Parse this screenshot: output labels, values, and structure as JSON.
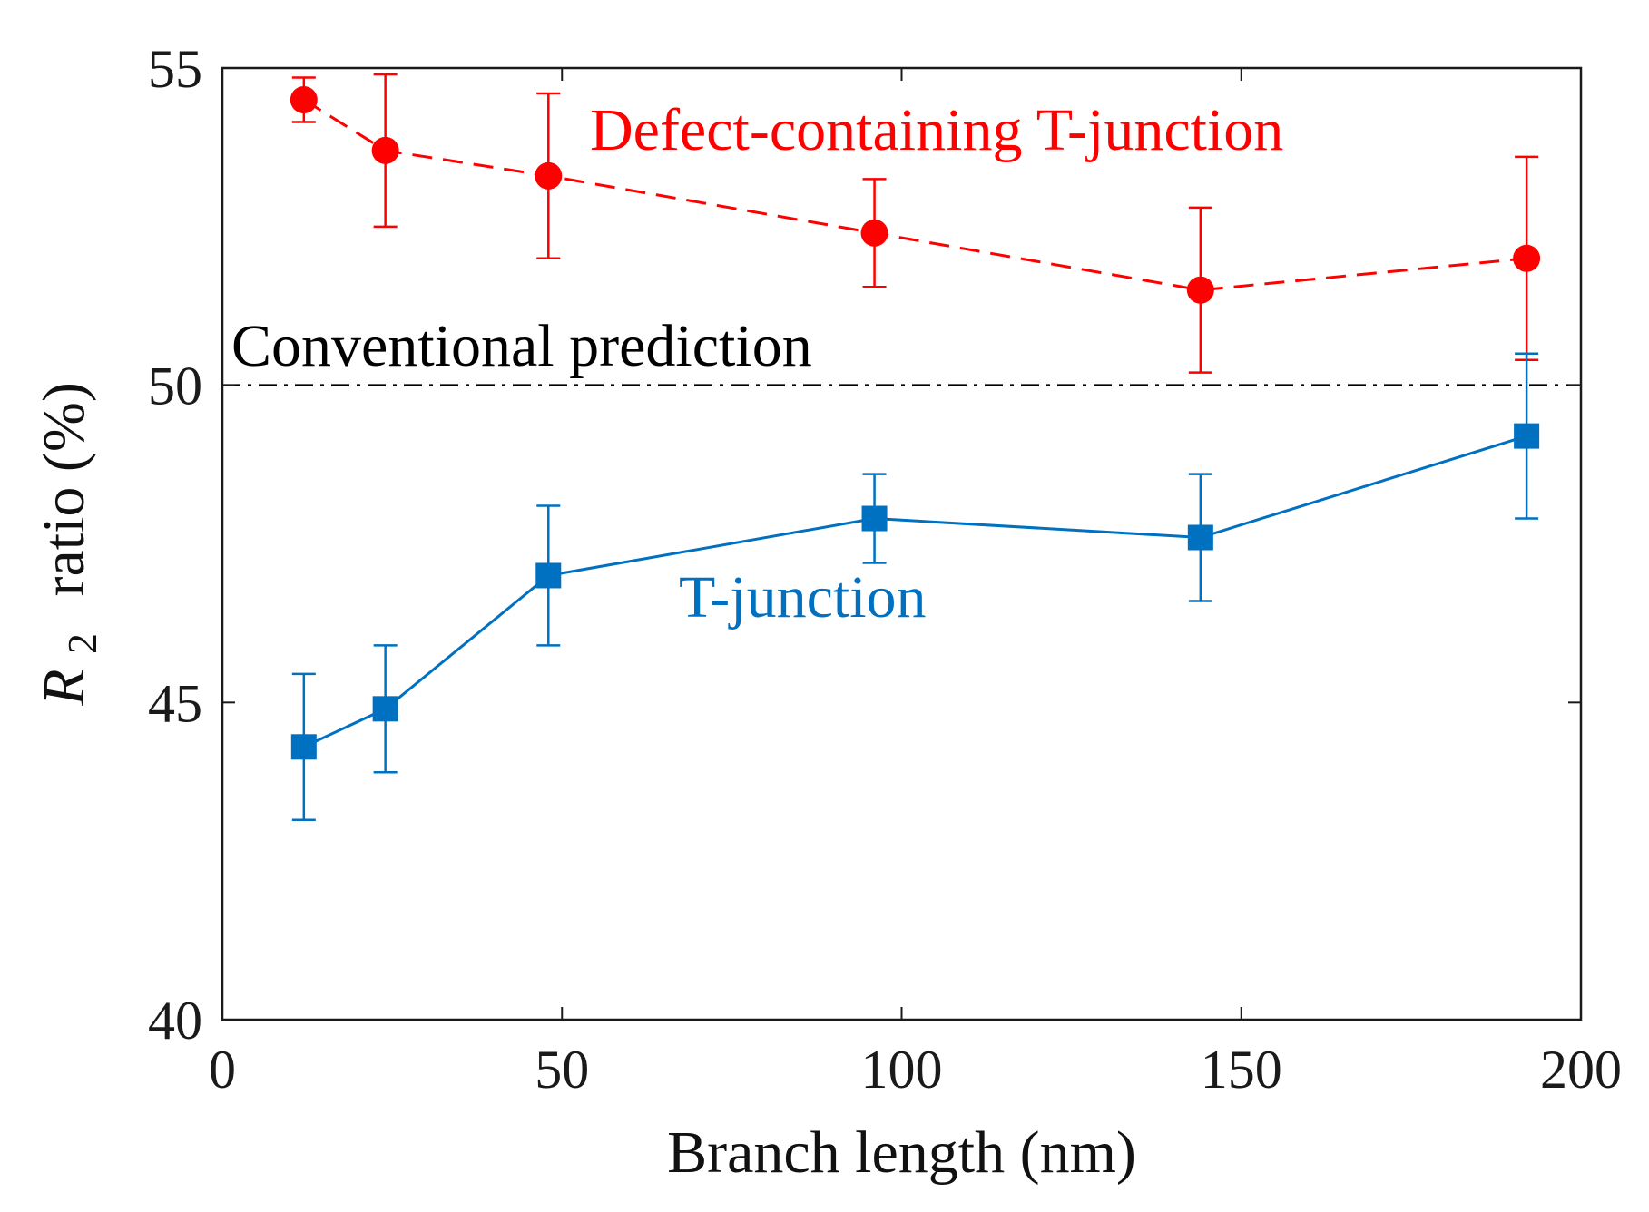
{
  "chart_data": {
    "type": "line",
    "xlabel": "Branch length (nm)",
    "ylabel": {
      "symbol": "R",
      "subscript": "2",
      "rest": "ratio (%)"
    },
    "xlim": [
      0,
      200
    ],
    "ylim": [
      40,
      55
    ],
    "xticks": [
      "0",
      "50",
      "100",
      "150",
      "200"
    ],
    "yticks": [
      "40",
      "45",
      "50",
      "55"
    ],
    "grid": false,
    "reference_line": {
      "y": 50,
      "label": "Conventional prediction",
      "color": "#000000",
      "style": "dash-dot"
    },
    "series": [
      {
        "name": "Defect-containing T-junction",
        "color": "#ff0000",
        "marker": "circle",
        "line_style": "dashed",
        "x": [
          12,
          24,
          48,
          96,
          144,
          192
        ],
        "y": [
          54.5,
          53.7,
          53.3,
          52.4,
          51.5,
          52.0
        ],
        "err": [
          0.35,
          1.2,
          1.3,
          0.85,
          1.3,
          1.6
        ]
      },
      {
        "name": "T-junction",
        "color": "#0070c0",
        "marker": "square",
        "line_style": "solid",
        "x": [
          12,
          24,
          48,
          96,
          144,
          192
        ],
        "y": [
          44.3,
          44.9,
          47.0,
          47.9,
          47.6,
          49.2
        ],
        "err": [
          1.15,
          1.0,
          1.1,
          0.7,
          1.0,
          1.3
        ]
      }
    ],
    "annotations": [
      {
        "text": "Defect-containing T-junction",
        "color": "#ff0000"
      },
      {
        "text": "Conventional prediction",
        "color": "#000000"
      },
      {
        "text": "T-junction",
        "color": "#0070c0"
      }
    ]
  }
}
